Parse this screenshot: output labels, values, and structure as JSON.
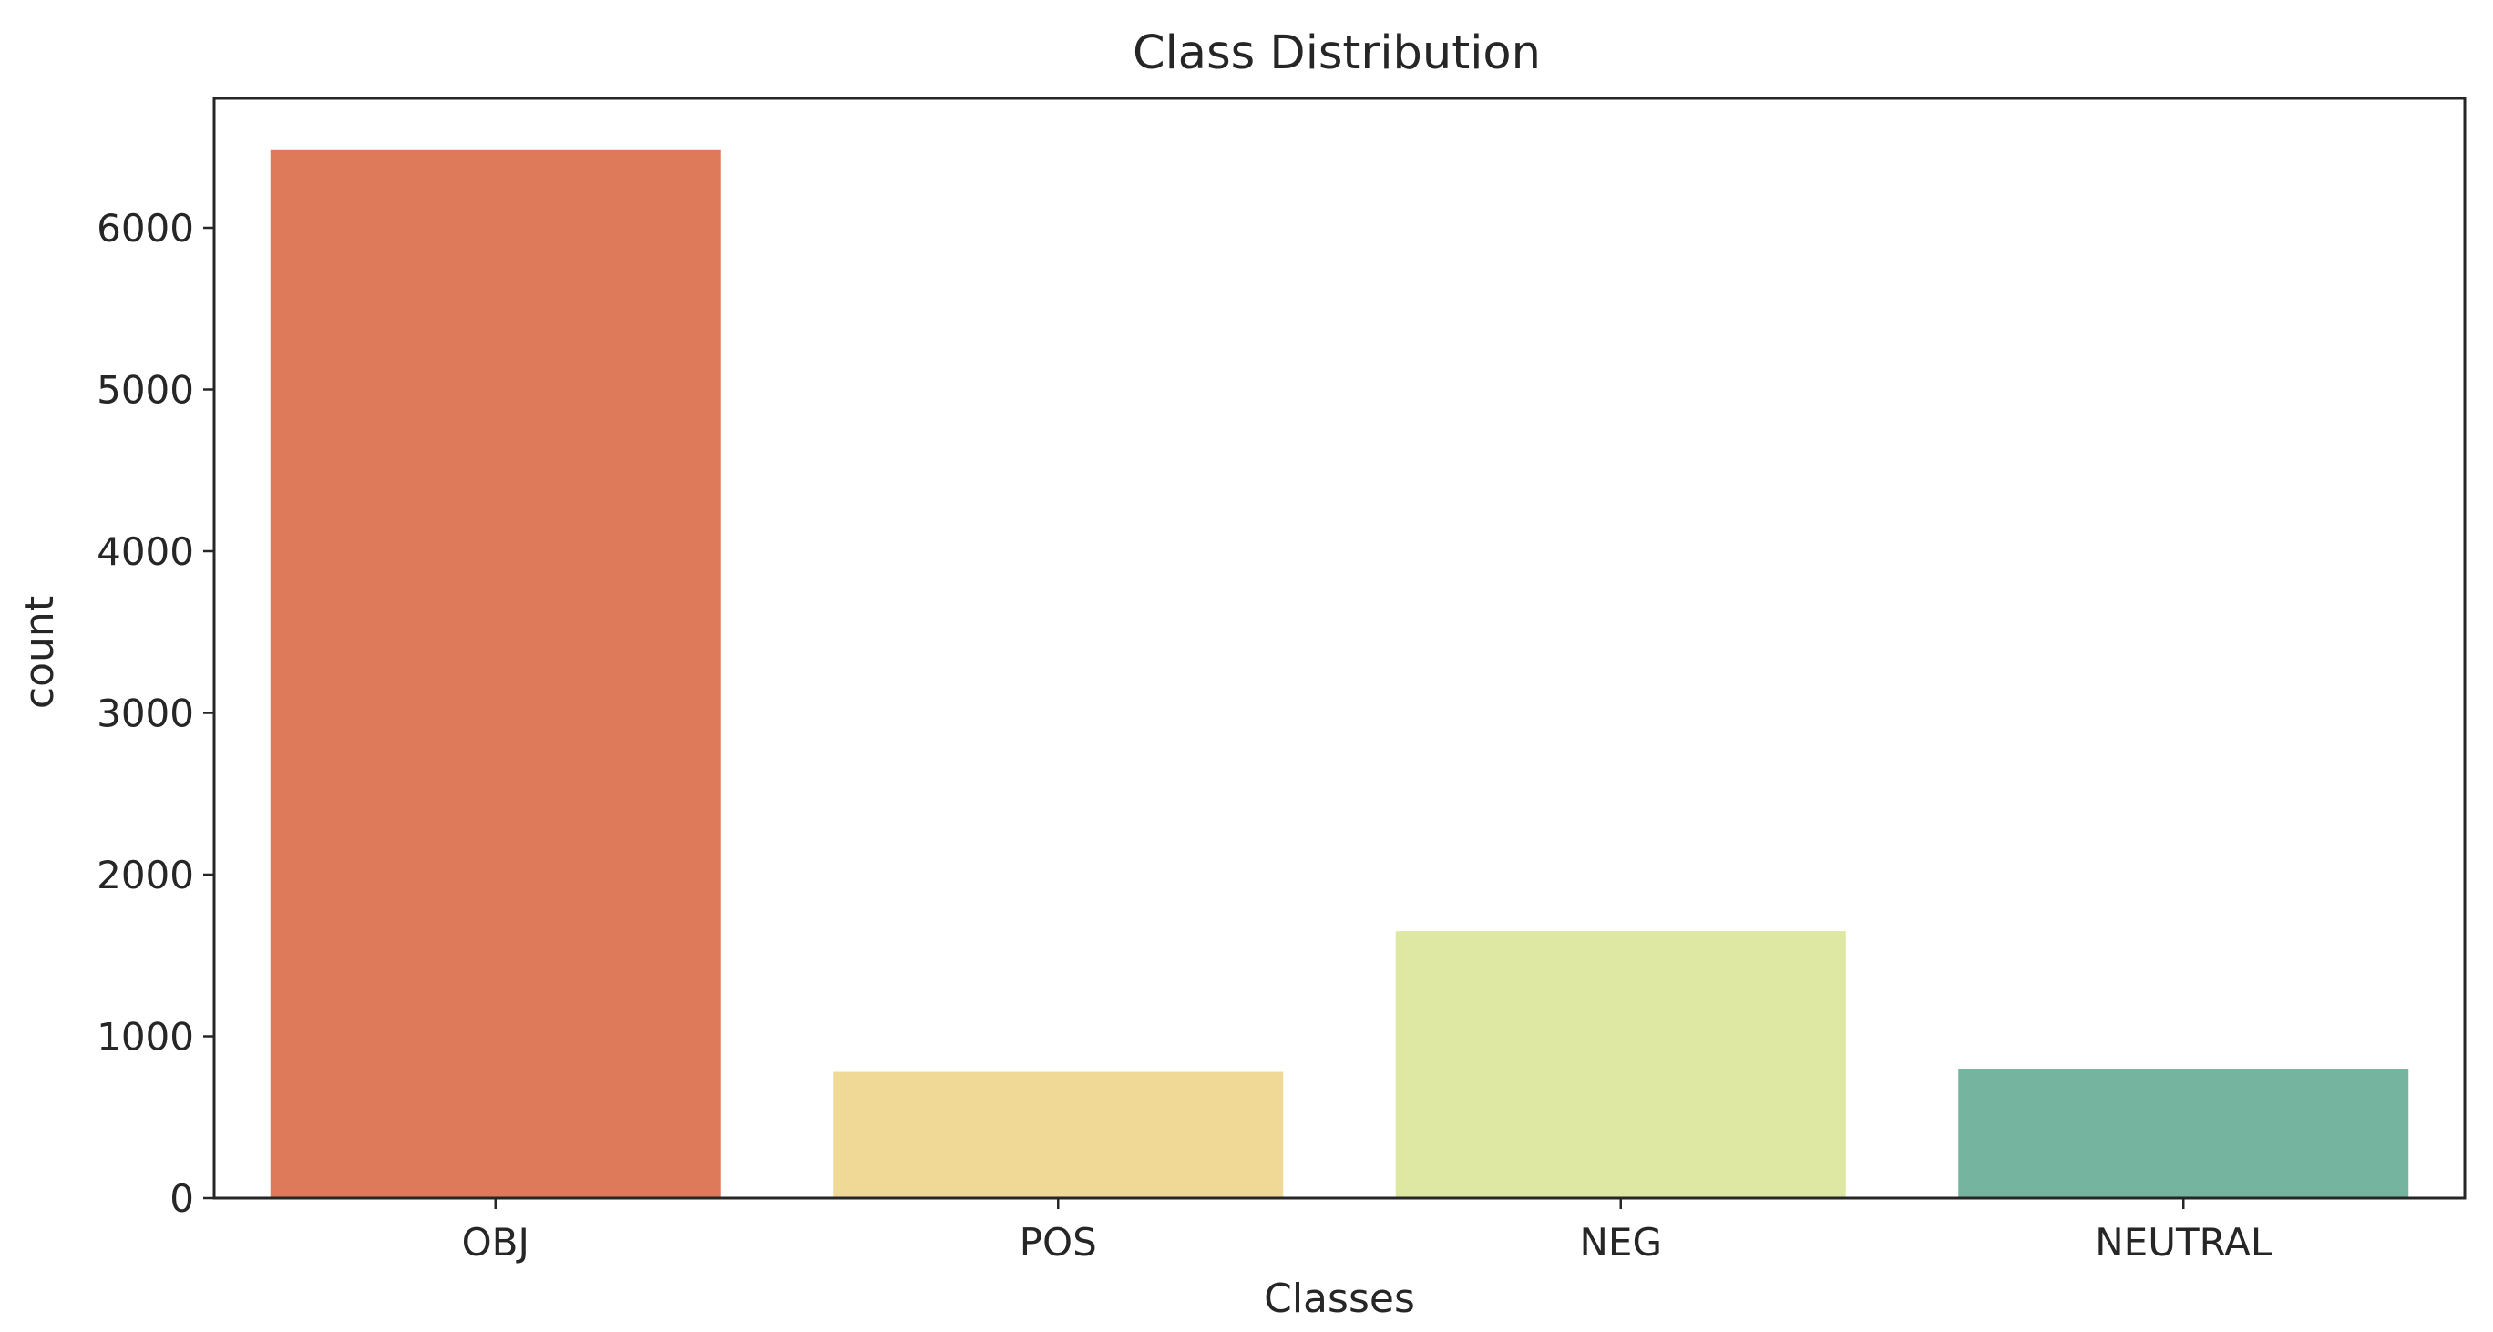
{
  "chart_data": {
    "type": "bar",
    "title": "Class Distribution",
    "xlabel": "Classes",
    "ylabel": "count",
    "categories": [
      "OBJ",
      "POS",
      "NEG",
      "NEUTRAL"
    ],
    "values": [
      6480,
      780,
      1650,
      800
    ],
    "colors": [
      "#de7a5a",
      "#f0d896",
      "#dfe8a2",
      "#75b49f"
    ],
    "yticks": [
      0,
      1000,
      2000,
      3000,
      4000,
      5000,
      6000
    ],
    "ytick_labels": [
      "0",
      "1000",
      "2000",
      "3000",
      "4000",
      "5000",
      "6000"
    ],
    "ylim": [
      0,
      6800
    ],
    "grid": false,
    "legend": "none"
  }
}
